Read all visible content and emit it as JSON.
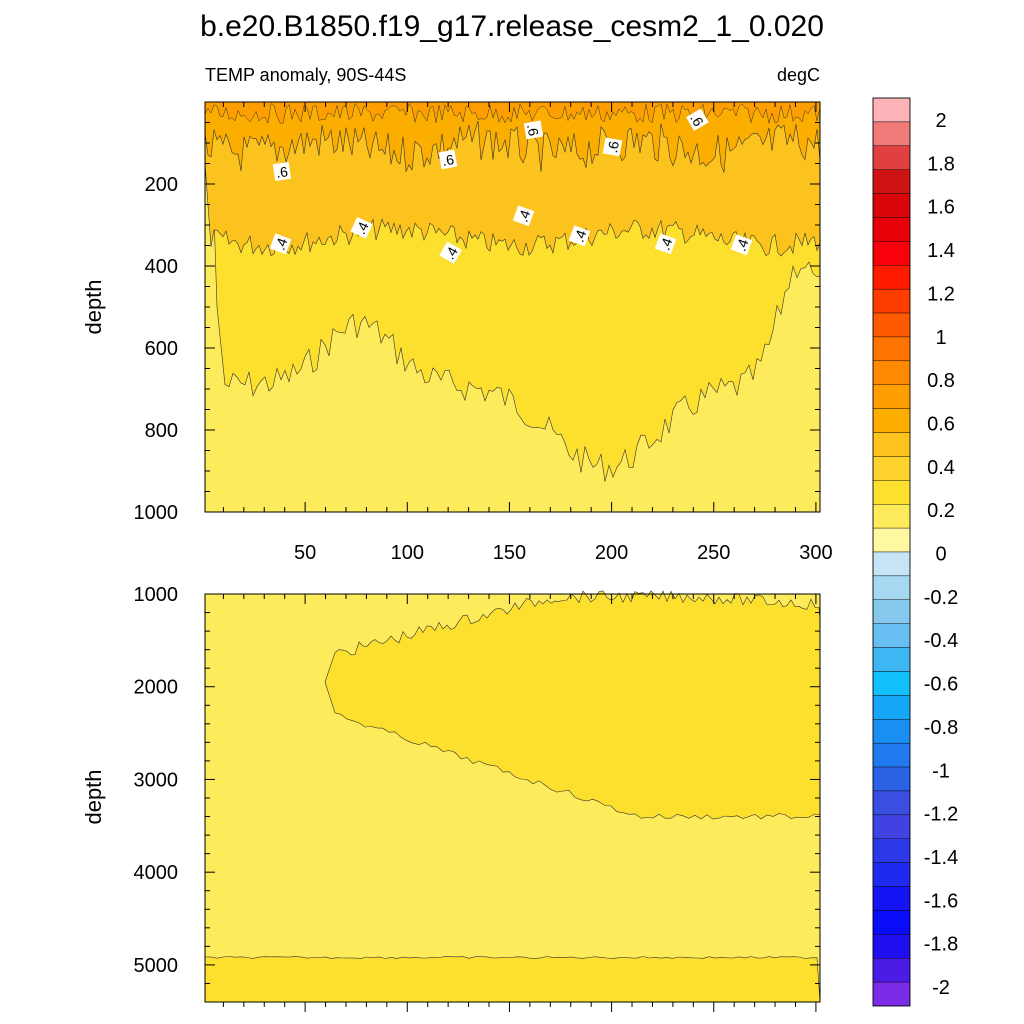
{
  "title": "b.e20.B1850.f19_g17.release_cesm2_1_0.020",
  "chart_data": [
    {
      "type": "contour",
      "panel": "upper",
      "subtitle_left": "TEMP anomaly, 90S-44S",
      "subtitle_right": "degC",
      "ylabel": "depth",
      "xlim": [
        1,
        302
      ],
      "ylim": [
        1000,
        0
      ],
      "x_ticks": [
        "50",
        "100",
        "150",
        "200",
        "250",
        "300"
      ],
      "y_ticks": [
        "200",
        "400",
        "600",
        "800",
        "1000"
      ],
      "contour_labels": [
        ".6",
        ".6",
        ".6",
        ".6",
        ".6",
        ".4",
        ".4",
        ".4",
        ".4",
        ".4",
        ".4",
        ".4",
        ".4"
      ],
      "contour_levels": [
        0.2,
        0.4,
        0.6,
        0.8
      ],
      "regions": [
        {
          "range": "0.6 to 0.8",
          "depth_top": 0,
          "depth_bottom": 100,
          "color": "#fcae00"
        },
        {
          "range": "0.4 to 0.6",
          "depth_top": 100,
          "depth_bottom": 320,
          "color": "#fcc21e"
        },
        {
          "range": "0.2 to 0.4",
          "depth_top": 320,
          "depth_bottom": 700,
          "color": "#fddf2d"
        },
        {
          "range": "0 to 0.2",
          "depth_top": 700,
          "depth_bottom": 1000,
          "color": "#fdeb5c"
        }
      ]
    },
    {
      "type": "contour",
      "panel": "lower",
      "ylabel": "depth",
      "xlim": [
        1,
        302
      ],
      "ylim": [
        5400,
        1000
      ],
      "y_ticks": [
        "1000",
        "2000",
        "3000",
        "4000",
        "5000"
      ],
      "contour_levels": [
        0.2
      ],
      "regions": [
        {
          "range": "0.2 to 0.4",
          "depth_top": 1000,
          "depth_bottom": 3400,
          "color": "#fddf2d"
        },
        {
          "range": "0 to 0.2",
          "depth_top": 1000,
          "depth_bottom": 4920,
          "color": "#fdeb5c"
        },
        {
          "range": "0.2 to 0.4",
          "depth_top": 4920,
          "depth_bottom": 5400,
          "color": "#fddf2d"
        }
      ]
    }
  ],
  "colorbar": {
    "labels": [
      "2",
      "1.8",
      "1.6",
      "1.4",
      "1.2",
      "1",
      "0.8",
      "0.6",
      "0.4",
      "0.2",
      "0",
      "-0.2",
      "-0.4",
      "-0.6",
      "-0.8",
      "-1",
      "-1.2",
      "-1.4",
      "-1.6",
      "-1.8",
      "-2"
    ],
    "colors": [
      "#fcb4b9",
      "#f07a78",
      "#e0403f",
      "#cf1213",
      "#d8050a",
      "#e80008",
      "#f8000c",
      "#ff1a00",
      "#ff3d00",
      "#ff5a00",
      "#ff7300",
      "#ff8900",
      "#fe9e00",
      "#fcae00",
      "#fcc21e",
      "#fdd22c",
      "#fddf2d",
      "#fdeb5c",
      "#fef8a1",
      "#c7e4f6",
      "#a7d8f1",
      "#86c8ee",
      "#67bef2",
      "#3fb6f4",
      "#12c0fb",
      "#15a7f5",
      "#1a8ff2",
      "#2079ef",
      "#2a62e6",
      "#3b4ee2",
      "#4043e2",
      "#2d39e8",
      "#1f2af0",
      "#1414f5",
      "#0a0bf7",
      "#1f0ff0",
      "#4a1ce6",
      "#7b2ae6"
    ]
  }
}
